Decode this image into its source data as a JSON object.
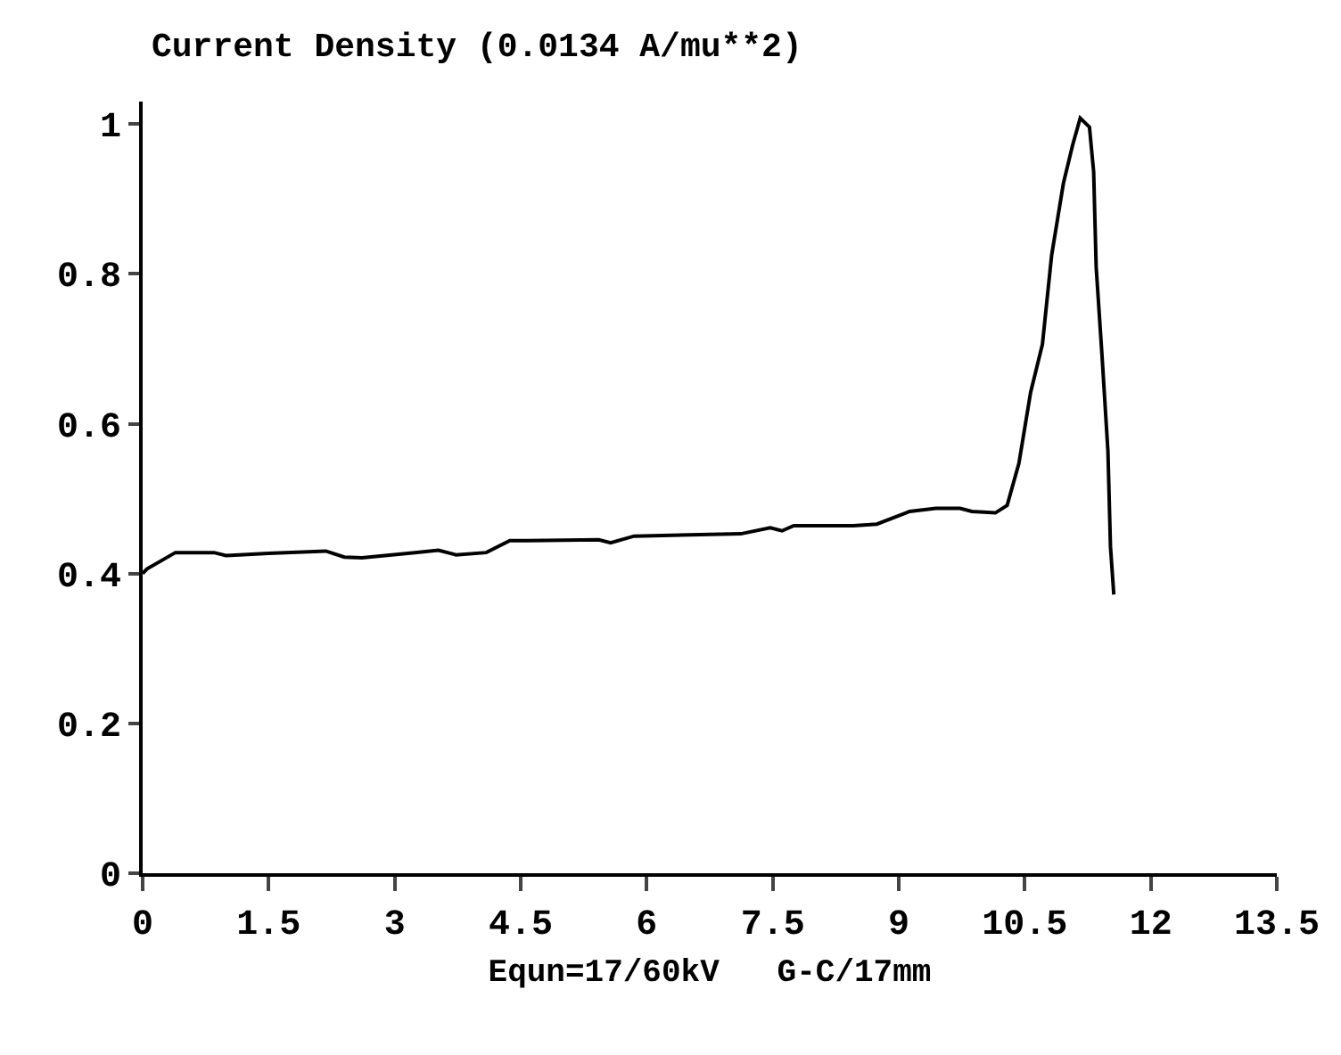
{
  "chart_data": {
    "type": "line",
    "title": "Current Density (0.0134 A/mu**2)",
    "xlabel": "Equn=17/60kV   G-C/17mm",
    "x": [
      0,
      0.05,
      0.39,
      0.63,
      0.85,
      0.99,
      1.5,
      2.18,
      2.4,
      2.61,
      3.24,
      3.52,
      3.73,
      4.09,
      4.37,
      4.58,
      5.43,
      5.57,
      5.85,
      7.12,
      7.47,
      7.61,
      7.75,
      8.46,
      8.74,
      9.13,
      9.44,
      9.73,
      9.87,
      10.15,
      10.29,
      10.43,
      10.57,
      10.71,
      10.82,
      10.96,
      11.07,
      11.16,
      11.27,
      11.32,
      11.35,
      11.42,
      11.49,
      11.52,
      11.56
    ],
    "series": [
      {
        "color": "#000000",
        "values": [
          0.4,
          0.406,
          0.428,
          0.428,
          0.428,
          0.424,
          0.427,
          0.43,
          0.422,
          0.421,
          0.428,
          0.431,
          0.425,
          0.428,
          0.444,
          0.444,
          0.445,
          0.441,
          0.45,
          0.453,
          0.461,
          0.457,
          0.464,
          0.464,
          0.466,
          0.483,
          0.487,
          0.487,
          0.483,
          0.481,
          0.491,
          0.547,
          0.642,
          0.706,
          0.825,
          0.921,
          0.972,
          1.008,
          0.996,
          0.936,
          0.809,
          0.69,
          0.563,
          0.436,
          0.372
        ]
      }
    ],
    "xlim": [
      0,
      13.5
    ],
    "xticks": [
      0,
      1.5,
      3,
      4.5,
      6,
      7.5,
      9,
      10.5,
      12,
      13.5
    ],
    "ylim": [
      0,
      1.03
    ],
    "yticks": [
      0,
      0.2,
      0.4,
      0.6,
      0.8,
      1
    ],
    "marker": "none",
    "line_style": "solid"
  }
}
